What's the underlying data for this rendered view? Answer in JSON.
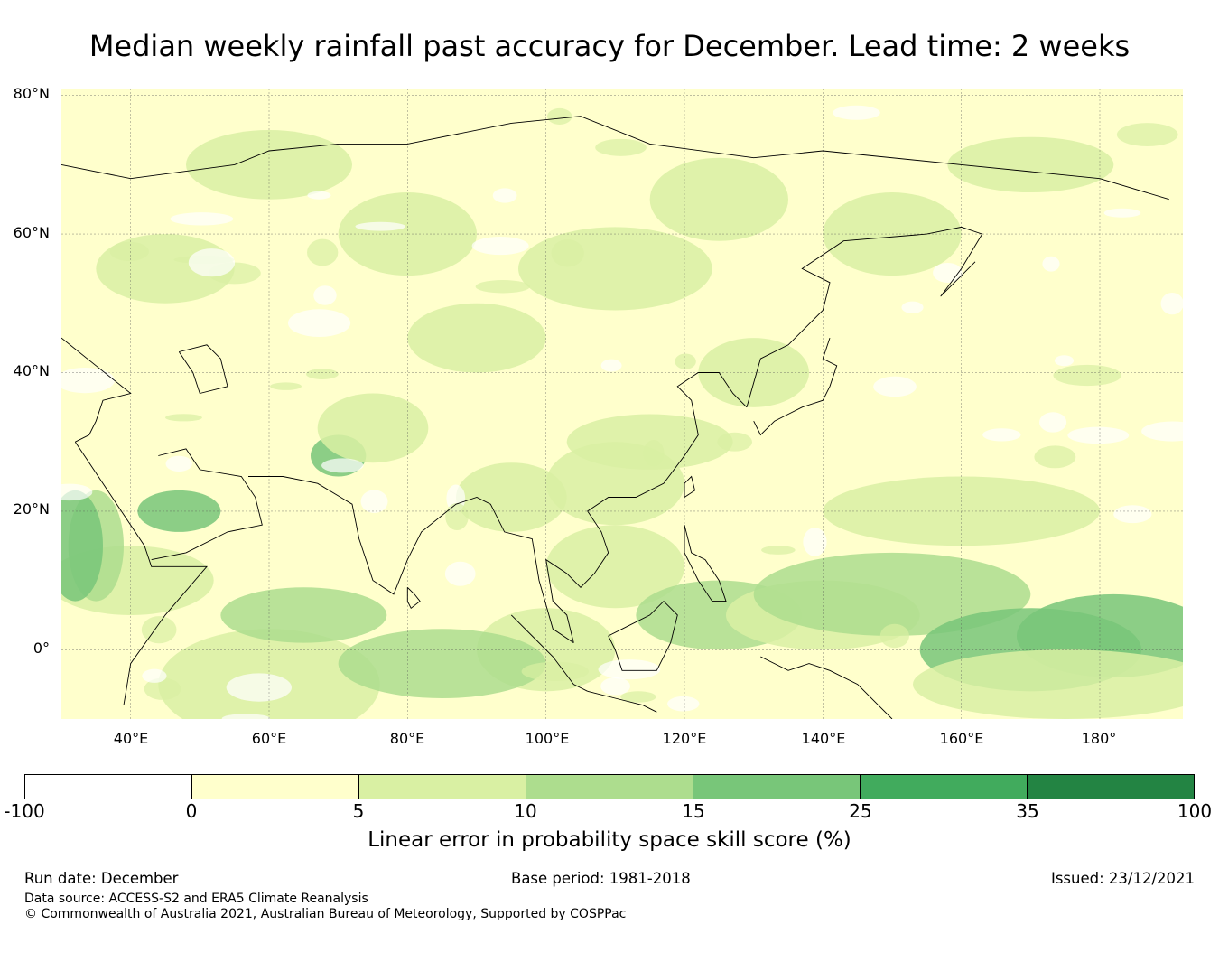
{
  "title": "Median weekly rainfall past accuracy for December. Lead time: 2 weeks",
  "map": {
    "lon_range": [
      30,
      192
    ],
    "lat_range": [
      -10,
      81
    ],
    "lat_labels": [
      "80°N",
      "60°N",
      "40°N",
      "20°N",
      "0°"
    ],
    "lon_labels": [
      "40°E",
      "60°E",
      "80°E",
      "100°E",
      "120°E",
      "140°E",
      "160°E",
      "180°"
    ],
    "lat_values": [
      80,
      60,
      40,
      20,
      0
    ],
    "lon_values": [
      40,
      60,
      80,
      100,
      120,
      140,
      160,
      180
    ]
  },
  "colorbar": {
    "label": "Linear error in probability space skill score (%)",
    "ticks": [
      "-100",
      "0",
      "5",
      "10",
      "15",
      "25",
      "35",
      "100"
    ],
    "colors": [
      "#ffffff",
      "#ffffcc",
      "#d9f0a3",
      "#addd8e",
      "#78c679",
      "#41ab5d",
      "#238443"
    ]
  },
  "footer": {
    "run_date": "Run date: December",
    "base_period": "Base period: 1981-2018",
    "issued": "Issued: 23/12/2021",
    "data_source": "Data source: ACCESS-S2 and ERA5 Climate Reanalysis",
    "copyright": "© Commonwealth of Australia 2021, Australian Bureau of Meteorology, Supported by COSPPac"
  }
}
